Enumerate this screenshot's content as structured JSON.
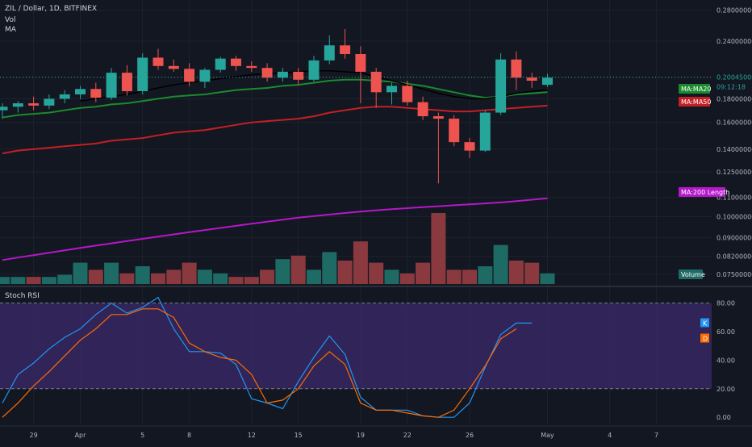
{
  "header": {
    "symbol_line": "ZIL / Dollar, 1D, BITFINEX",
    "vol_label": "Vol",
    "ma_label": "MA",
    "osc_label": "Stoch RSI"
  },
  "colors": {
    "background": "#131722",
    "grid": "#1e222d",
    "up": "#26a69a",
    "down": "#ef5350",
    "vol_up": "#1e6b66",
    "vol_down": "#8a3a3f",
    "ma20": "#1b8a2e",
    "ma50": "#c41f25",
    "ma200": "#b418c8",
    "ma_black": "#000000",
    "k_line": "#2196f3",
    "d_line": "#ff6d00",
    "rsi_band": "#3b2a6b"
  },
  "chart_data": [
    {
      "type": "candlestick",
      "title": "ZIL / Dollar, 1D, BITFINEX",
      "x_ticks": [
        "29",
        "Apr",
        "5",
        "8",
        "12",
        "15",
        "19",
        "22",
        "26",
        "May",
        "4",
        "7"
      ],
      "y_ticks": [
        "0.28000000",
        "0.24000000",
        "0.20045000",
        "0.18000000",
        "0.16000000",
        "0.14000000",
        "0.12500000",
        "0.11000000",
        "0.10000000",
        "0.09000000",
        "0.08200000",
        "0.07500000"
      ],
      "y_scale": "log",
      "y_range": [
        0.072,
        0.29
      ],
      "last_price": "0.20045000",
      "countdown": "09:12:18",
      "candles": [
        {
          "o": 0.17,
          "h": 0.176,
          "l": 0.163,
          "c": 0.173
        },
        {
          "o": 0.173,
          "h": 0.178,
          "l": 0.168,
          "c": 0.176
        },
        {
          "o": 0.176,
          "h": 0.182,
          "l": 0.17,
          "c": 0.174
        },
        {
          "o": 0.174,
          "h": 0.184,
          "l": 0.171,
          "c": 0.18
        },
        {
          "o": 0.18,
          "h": 0.188,
          "l": 0.176,
          "c": 0.184
        },
        {
          "o": 0.184,
          "h": 0.192,
          "l": 0.18,
          "c": 0.189
        },
        {
          "o": 0.189,
          "h": 0.195,
          "l": 0.177,
          "c": 0.181
        },
        {
          "o": 0.181,
          "h": 0.21,
          "l": 0.179,
          "c": 0.205
        },
        {
          "o": 0.205,
          "h": 0.213,
          "l": 0.183,
          "c": 0.187
        },
        {
          "o": 0.187,
          "h": 0.226,
          "l": 0.184,
          "c": 0.221
        },
        {
          "o": 0.221,
          "h": 0.231,
          "l": 0.208,
          "c": 0.212
        },
        {
          "o": 0.212,
          "h": 0.219,
          "l": 0.206,
          "c": 0.209
        },
        {
          "o": 0.209,
          "h": 0.215,
          "l": 0.192,
          "c": 0.196
        },
        {
          "o": 0.196,
          "h": 0.21,
          "l": 0.19,
          "c": 0.208
        },
        {
          "o": 0.208,
          "h": 0.222,
          "l": 0.205,
          "c": 0.22
        },
        {
          "o": 0.22,
          "h": 0.223,
          "l": 0.207,
          "c": 0.212
        },
        {
          "o": 0.212,
          "h": 0.217,
          "l": 0.206,
          "c": 0.21
        },
        {
          "o": 0.21,
          "h": 0.215,
          "l": 0.196,
          "c": 0.2
        },
        {
          "o": 0.2,
          "h": 0.21,
          "l": 0.196,
          "c": 0.206
        },
        {
          "o": 0.206,
          "h": 0.21,
          "l": 0.193,
          "c": 0.198
        },
        {
          "o": 0.198,
          "h": 0.223,
          "l": 0.196,
          "c": 0.218
        },
        {
          "o": 0.218,
          "h": 0.247,
          "l": 0.214,
          "c": 0.235
        },
        {
          "o": 0.235,
          "h": 0.255,
          "l": 0.22,
          "c": 0.225
        },
        {
          "o": 0.225,
          "h": 0.234,
          "l": 0.176,
          "c": 0.206
        },
        {
          "o": 0.206,
          "h": 0.21,
          "l": 0.172,
          "c": 0.186
        },
        {
          "o": 0.186,
          "h": 0.195,
          "l": 0.175,
          "c": 0.192
        },
        {
          "o": 0.192,
          "h": 0.197,
          "l": 0.174,
          "c": 0.177
        },
        {
          "o": 0.177,
          "h": 0.182,
          "l": 0.162,
          "c": 0.165
        },
        {
          "o": 0.165,
          "h": 0.168,
          "l": 0.118,
          "c": 0.163
        },
        {
          "o": 0.163,
          "h": 0.166,
          "l": 0.142,
          "c": 0.145
        },
        {
          "o": 0.145,
          "h": 0.148,
          "l": 0.134,
          "c": 0.139
        },
        {
          "o": 0.139,
          "h": 0.17,
          "l": 0.138,
          "c": 0.168
        },
        {
          "o": 0.168,
          "h": 0.226,
          "l": 0.166,
          "c": 0.219
        },
        {
          "o": 0.219,
          "h": 0.228,
          "l": 0.188,
          "c": 0.2
        },
        {
          "o": 0.2,
          "h": 0.205,
          "l": 0.19,
          "c": 0.197
        },
        {
          "o": 0.193,
          "h": 0.204,
          "l": 0.191,
          "c": 0.2
        }
      ],
      "ma": [
        {
          "name": "MA:MA20",
          "values": [
            0.164,
            0.166,
            0.167,
            0.168,
            0.17,
            0.172,
            0.173,
            0.175,
            0.176,
            0.178,
            0.18,
            0.182,
            0.183,
            0.184,
            0.186,
            0.188,
            0.189,
            0.19,
            0.192,
            0.193,
            0.195,
            0.197,
            0.198,
            0.198,
            0.197,
            0.196,
            0.194,
            0.192,
            0.189,
            0.186,
            0.183,
            0.181,
            0.182,
            0.184,
            0.185,
            0.186
          ]
        },
        {
          "name": "MA:MA50",
          "values": [
            0.137,
            0.139,
            0.14,
            0.141,
            0.142,
            0.143,
            0.144,
            0.146,
            0.147,
            0.148,
            0.15,
            0.152,
            0.153,
            0.154,
            0.156,
            0.158,
            0.16,
            0.161,
            0.162,
            0.163,
            0.165,
            0.168,
            0.17,
            0.172,
            0.173,
            0.173,
            0.172,
            0.171,
            0.17,
            0.169,
            0.169,
            0.17,
            0.171,
            0.172,
            0.173,
            0.174
          ]
        },
        {
          "name": "",
          "values": [
            null,
            null,
            null,
            null,
            null,
            0.178,
            0.18,
            0.182,
            0.184,
            0.187,
            0.19,
            0.193,
            0.195,
            0.197,
            0.199,
            0.201,
            0.203,
            0.204,
            0.205,
            0.206,
            0.207,
            0.207,
            0.206,
            0.205,
            0.201,
            0.197,
            0.193,
            0.189,
            0.185,
            0.182,
            0.18,
            0.18,
            0.182,
            0.185,
            0.187,
            0.188
          ]
        },
        {
          "name": "MA:200 Length",
          "values": [
            0.0805,
            0.0815,
            0.0825,
            0.0835,
            0.0845,
            0.0855,
            0.0865,
            0.0875,
            0.0885,
            0.0895,
            0.0905,
            0.0915,
            0.0925,
            0.0935,
            0.0945,
            0.0955,
            0.0965,
            0.0975,
            0.0985,
            0.0995,
            0.1002,
            0.101,
            0.1018,
            0.1025,
            0.1032,
            0.1038,
            0.1043,
            0.1048,
            0.1053,
            0.1058,
            0.1063,
            0.1068,
            0.1073,
            0.108,
            0.1088,
            0.1096
          ]
        }
      ],
      "volume_label": "Volume",
      "volume": [
        0.1,
        0.1,
        0.1,
        0.1,
        0.13,
        0.3,
        0.2,
        0.3,
        0.15,
        0.25,
        0.15,
        0.2,
        0.3,
        0.2,
        0.15,
        0.1,
        0.1,
        0.2,
        0.35,
        0.4,
        0.2,
        0.45,
        0.33,
        0.6,
        0.3,
        0.2,
        0.15,
        0.3,
        1.0,
        0.2,
        0.2,
        0.25,
        0.55,
        0.33,
        0.3,
        0.15
      ]
    },
    {
      "type": "line",
      "title": "Stoch RSI",
      "y_ticks": [
        "80.00",
        "60.00",
        "40.00",
        "20.00",
        "0.00"
      ],
      "ylim": [
        -5,
        90
      ],
      "band": [
        20,
        80
      ],
      "series": [
        {
          "name": "K",
          "values": [
            10,
            30,
            38,
            48,
            56,
            62,
            72,
            80,
            73,
            77,
            84,
            62,
            46,
            46,
            45,
            37,
            13,
            10,
            6,
            25,
            42,
            57,
            44,
            14,
            5,
            5,
            5,
            1,
            0,
            0,
            10,
            35,
            58,
            66,
            66
          ]
        },
        {
          "name": "D",
          "values": [
            0,
            10,
            22,
            32,
            43,
            54,
            62,
            72,
            72,
            76,
            76,
            70,
            52,
            46,
            42,
            40,
            30,
            10,
            12,
            20,
            36,
            46,
            37,
            10,
            5,
            5,
            3,
            1,
            0,
            5,
            20,
            36,
            55,
            62
          ]
        }
      ]
    }
  ]
}
